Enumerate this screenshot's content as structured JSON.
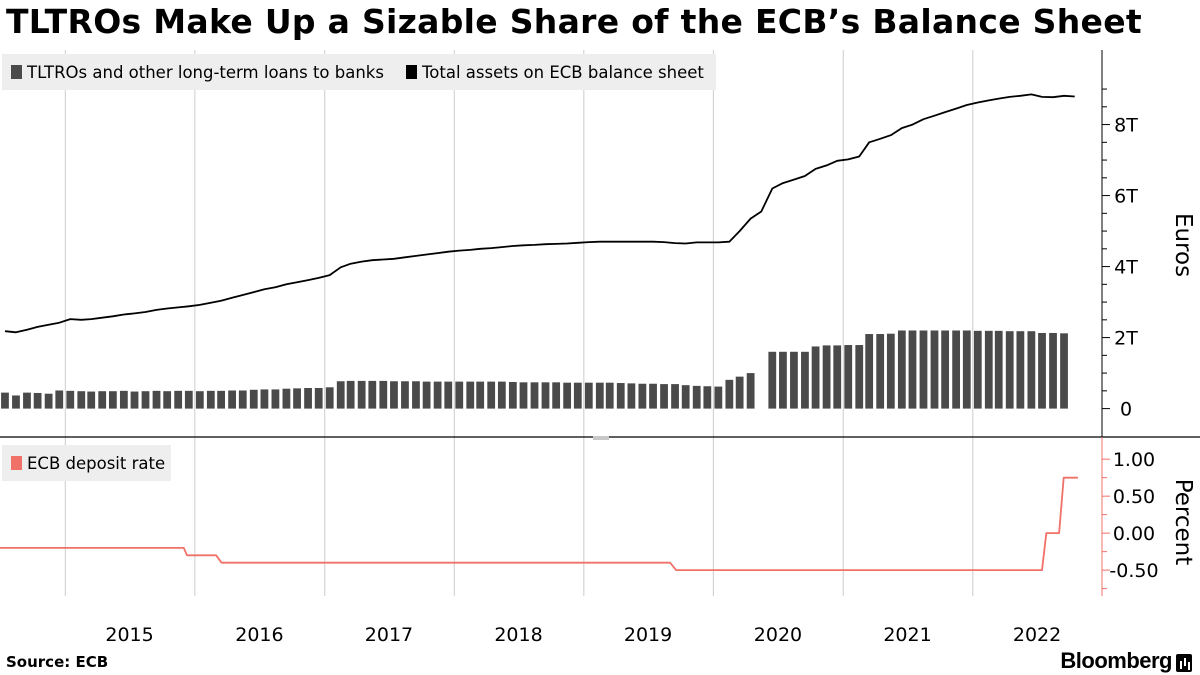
{
  "title": "TLTROs Make Up a Sizable Share of the ECB’s Balance Sheet",
  "source": "Source: ECB",
  "brand": "Bloomberg",
  "colors": {
    "bars": "#4a4a4a",
    "assets_line": "#000000",
    "deposit_rate": "#f07167",
    "grid": "#cccccc",
    "legend_bg": "#eeeeee"
  },
  "chart_data": [
    {
      "type": "bar",
      "title": "",
      "ylabel": "Euros",
      "ylim": [
        -0.8,
        10.1
      ],
      "yticks": [
        "0",
        "2T",
        "4T",
        "6T",
        "8T"
      ],
      "ytick_values": [
        0,
        2,
        4,
        6,
        8
      ],
      "x_categories": [
        "2015",
        "2016",
        "2017",
        "2018",
        "2019",
        "2020",
        "2021",
        "2022"
      ],
      "x_range": [
        "2014-07-01",
        "2022-12-31"
      ],
      "grid": "vertical at year boundaries",
      "legend_position": "top-left",
      "series": [
        {
          "name": "TLTROs and other long-term loans to banks",
          "type": "bar",
          "unit": "trillion euros",
          "points": [
            [
              "2014-07",
              0.45
            ],
            [
              "2014-08",
              0.37
            ],
            [
              "2014-09",
              0.45
            ],
            [
              "2014-10",
              0.44
            ],
            [
              "2014-11",
              0.42
            ],
            [
              "2014-12",
              0.51
            ],
            [
              "2015-01",
              0.5
            ],
            [
              "2015-02",
              0.49
            ],
            [
              "2015-03",
              0.48
            ],
            [
              "2015-04",
              0.49
            ],
            [
              "2015-05",
              0.49
            ],
            [
              "2015-06",
              0.5
            ],
            [
              "2015-07",
              0.48
            ],
            [
              "2015-08",
              0.49
            ],
            [
              "2015-09",
              0.5
            ],
            [
              "2015-10",
              0.49
            ],
            [
              "2015-11",
              0.5
            ],
            [
              "2015-12",
              0.5
            ],
            [
              "2016-01",
              0.49
            ],
            [
              "2016-02",
              0.5
            ],
            [
              "2016-03",
              0.5
            ],
            [
              "2016-04",
              0.51
            ],
            [
              "2016-05",
              0.51
            ],
            [
              "2016-06",
              0.53
            ],
            [
              "2016-07",
              0.54
            ],
            [
              "2016-08",
              0.54
            ],
            [
              "2016-09",
              0.56
            ],
            [
              "2016-10",
              0.57
            ],
            [
              "2016-11",
              0.58
            ],
            [
              "2016-12",
              0.58
            ],
            [
              "2017-01",
              0.6
            ],
            [
              "2017-02",
              0.77
            ],
            [
              "2017-03",
              0.78
            ],
            [
              "2017-04",
              0.78
            ],
            [
              "2017-05",
              0.78
            ],
            [
              "2017-06",
              0.78
            ],
            [
              "2017-07",
              0.77
            ],
            [
              "2017-08",
              0.77
            ],
            [
              "2017-09",
              0.77
            ],
            [
              "2017-10",
              0.76
            ],
            [
              "2017-11",
              0.76
            ],
            [
              "2017-12",
              0.76
            ],
            [
              "2018-01",
              0.76
            ],
            [
              "2018-02",
              0.76
            ],
            [
              "2018-03",
              0.76
            ],
            [
              "2018-04",
              0.76
            ],
            [
              "2018-05",
              0.76
            ],
            [
              "2018-06",
              0.75
            ],
            [
              "2018-07",
              0.74
            ],
            [
              "2018-08",
              0.74
            ],
            [
              "2018-09",
              0.74
            ],
            [
              "2018-10",
              0.74
            ],
            [
              "2018-11",
              0.73
            ],
            [
              "2018-12",
              0.73
            ],
            [
              "2019-01",
              0.73
            ],
            [
              "2019-02",
              0.73
            ],
            [
              "2019-03",
              0.73
            ],
            [
              "2019-04",
              0.72
            ],
            [
              "2019-05",
              0.71
            ],
            [
              "2019-06",
              0.7
            ],
            [
              "2019-07",
              0.7
            ],
            [
              "2019-08",
              0.69
            ],
            [
              "2019-09",
              0.69
            ],
            [
              "2019-10",
              0.66
            ],
            [
              "2019-11",
              0.64
            ],
            [
              "2019-12",
              0.63
            ],
            [
              "2020-01",
              0.62
            ],
            [
              "2020-02",
              0.81
            ],
            [
              "2020-03",
              0.9
            ],
            [
              "2020-04",
              1.0
            ],
            [
              "2020-06",
              1.6
            ],
            [
              "2020-07",
              1.6
            ],
            [
              "2020-08",
              1.6
            ],
            [
              "2020-09",
              1.6
            ],
            [
              "2020-10",
              1.75
            ],
            [
              "2020-11",
              1.78
            ],
            [
              "2020-12",
              1.78
            ],
            [
              "2021-01",
              1.79
            ],
            [
              "2021-02",
              1.79
            ],
            [
              "2021-03",
              2.1
            ],
            [
              "2021-04",
              2.1
            ],
            [
              "2021-05",
              2.11
            ],
            [
              "2021-06",
              2.2
            ],
            [
              "2021-07",
              2.2
            ],
            [
              "2021-08",
              2.2
            ],
            [
              "2021-09",
              2.2
            ],
            [
              "2021-10",
              2.2
            ],
            [
              "2021-11",
              2.2
            ],
            [
              "2021-12",
              2.2
            ],
            [
              "2022-01",
              2.19
            ],
            [
              "2022-02",
              2.19
            ],
            [
              "2022-03",
              2.19
            ],
            [
              "2022-04",
              2.18
            ],
            [
              "2022-05",
              2.18
            ],
            [
              "2022-06",
              2.18
            ],
            [
              "2022-07",
              2.13
            ],
            [
              "2022-08",
              2.13
            ],
            [
              "2022-09",
              2.12
            ]
          ]
        },
        {
          "name": "Total assets on ECB balance sheet",
          "type": "line",
          "unit": "trillion euros",
          "points": [
            [
              "2014-07",
              2.18
            ],
            [
              "2014-08",
              2.15
            ],
            [
              "2014-09",
              2.22
            ],
            [
              "2014-10",
              2.3
            ],
            [
              "2014-11",
              2.36
            ],
            [
              "2014-12",
              2.42
            ],
            [
              "2015-01",
              2.52
            ],
            [
              "2015-02",
              2.5
            ],
            [
              "2015-03",
              2.52
            ],
            [
              "2015-04",
              2.56
            ],
            [
              "2015-05",
              2.6
            ],
            [
              "2015-06",
              2.65
            ],
            [
              "2015-07",
              2.68
            ],
            [
              "2015-08",
              2.72
            ],
            [
              "2015-09",
              2.78
            ],
            [
              "2015-10",
              2.82
            ],
            [
              "2015-11",
              2.85
            ],
            [
              "2015-12",
              2.88
            ],
            [
              "2016-01",
              2.92
            ],
            [
              "2016-02",
              2.98
            ],
            [
              "2016-03",
              3.04
            ],
            [
              "2016-04",
              3.12
            ],
            [
              "2016-05",
              3.2
            ],
            [
              "2016-06",
              3.28
            ],
            [
              "2016-07",
              3.36
            ],
            [
              "2016-08",
              3.42
            ],
            [
              "2016-09",
              3.5
            ],
            [
              "2016-10",
              3.56
            ],
            [
              "2016-11",
              3.62
            ],
            [
              "2016-12",
              3.68
            ],
            [
              "2017-01",
              3.76
            ],
            [
              "2017-02",
              3.98
            ],
            [
              "2017-03",
              4.08
            ],
            [
              "2017-04",
              4.14
            ],
            [
              "2017-05",
              4.18
            ],
            [
              "2017-06",
              4.2
            ],
            [
              "2017-07",
              4.22
            ],
            [
              "2017-08",
              4.26
            ],
            [
              "2017-09",
              4.3
            ],
            [
              "2017-10",
              4.34
            ],
            [
              "2017-11",
              4.38
            ],
            [
              "2017-12",
              4.42
            ],
            [
              "2018-01",
              4.45
            ],
            [
              "2018-02",
              4.47
            ],
            [
              "2018-03",
              4.5
            ],
            [
              "2018-04",
              4.52
            ],
            [
              "2018-05",
              4.55
            ],
            [
              "2018-06",
              4.58
            ],
            [
              "2018-07",
              4.6
            ],
            [
              "2018-08",
              4.61
            ],
            [
              "2018-09",
              4.63
            ],
            [
              "2018-10",
              4.64
            ],
            [
              "2018-11",
              4.65
            ],
            [
              "2018-12",
              4.67
            ],
            [
              "2019-01",
              4.69
            ],
            [
              "2019-02",
              4.7
            ],
            [
              "2019-03",
              4.7
            ],
            [
              "2019-04",
              4.7
            ],
            [
              "2019-05",
              4.7
            ],
            [
              "2019-06",
              4.7
            ],
            [
              "2019-07",
              4.7
            ],
            [
              "2019-08",
              4.69
            ],
            [
              "2019-09",
              4.66
            ],
            [
              "2019-10",
              4.65
            ],
            [
              "2019-11",
              4.68
            ],
            [
              "2019-12",
              4.68
            ],
            [
              "2020-01",
              4.68
            ],
            [
              "2020-02",
              4.7
            ],
            [
              "2020-03",
              5.0
            ],
            [
              "2020-04",
              5.35
            ],
            [
              "2020-05",
              5.55
            ],
            [
              "2020-06",
              6.2
            ],
            [
              "2020-07",
              6.35
            ],
            [
              "2020-08",
              6.45
            ],
            [
              "2020-09",
              6.55
            ],
            [
              "2020-10",
              6.75
            ],
            [
              "2020-11",
              6.85
            ],
            [
              "2020-12",
              6.98
            ],
            [
              "2021-01",
              7.02
            ],
            [
              "2021-02",
              7.1
            ],
            [
              "2021-03",
              7.5
            ],
            [
              "2021-04",
              7.6
            ],
            [
              "2021-05",
              7.7
            ],
            [
              "2021-06",
              7.9
            ],
            [
              "2021-07",
              8.0
            ],
            [
              "2021-08",
              8.15
            ],
            [
              "2021-09",
              8.25
            ],
            [
              "2021-10",
              8.35
            ],
            [
              "2021-11",
              8.45
            ],
            [
              "2021-12",
              8.55
            ],
            [
              "2022-01",
              8.62
            ],
            [
              "2022-02",
              8.68
            ],
            [
              "2022-03",
              8.73
            ],
            [
              "2022-04",
              8.78
            ],
            [
              "2022-05",
              8.81
            ],
            [
              "2022-06",
              8.85
            ],
            [
              "2022-07",
              8.78
            ],
            [
              "2022-08",
              8.77
            ],
            [
              "2022-09",
              8.81
            ],
            [
              "2022-10",
              8.79
            ]
          ]
        }
      ]
    },
    {
      "type": "line",
      "title": "",
      "ylabel": "Percent",
      "ylim": [
        -0.85,
        1.3
      ],
      "yticks": [
        "1.00",
        "0.50",
        "0.00",
        "-0.50"
      ],
      "ytick_values": [
        1.0,
        0.5,
        0.0,
        -0.5
      ],
      "x_categories": [
        "2015",
        "2016",
        "2017",
        "2018",
        "2019",
        "2020",
        "2021",
        "2022"
      ],
      "x_range": [
        "2014-07-01",
        "2022-12-31"
      ],
      "grid": "vertical at year boundaries",
      "legend_position": "top-left",
      "series": [
        {
          "name": "ECB deposit rate",
          "points": [
            [
              "2014-07-01",
              -0.2
            ],
            [
              "2015-12-01",
              -0.2
            ],
            [
              "2015-12-10",
              -0.3
            ],
            [
              "2016-03-01",
              -0.3
            ],
            [
              "2016-03-16",
              -0.4
            ],
            [
              "2019-09-01",
              -0.4
            ],
            [
              "2019-09-18",
              -0.5
            ],
            [
              "2022-07-15",
              -0.5
            ],
            [
              "2022-07-27",
              0.0
            ],
            [
              "2022-09-01",
              0.0
            ],
            [
              "2022-09-14",
              0.75
            ],
            [
              "2022-10-24",
              0.75
            ]
          ]
        }
      ]
    }
  ]
}
